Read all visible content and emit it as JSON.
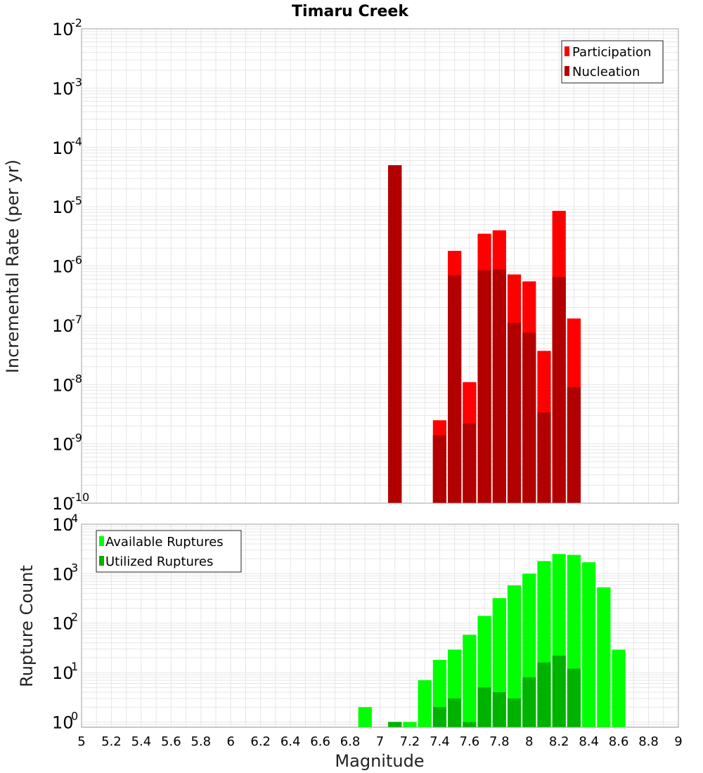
{
  "colors": {
    "participation": "#ff0000",
    "nucleation": "#b20000",
    "available": "#00ff00",
    "utilized": "#00b200",
    "grid": "#e6e6e6",
    "frame": "#a0a0a0"
  },
  "chart_data": [
    {
      "type": "bar",
      "title": "Timaru Creek",
      "xlabel": "",
      "ylabel": "Incremental Rate (per yr)",
      "yscale": "log",
      "ylim": [
        1e-10,
        0.01
      ],
      "xlim": [
        5,
        9
      ],
      "ytick_base": "10",
      "ytick_exponents": [
        "-10",
        "-9",
        "-8",
        "-7",
        "-6",
        "-5",
        "-4",
        "-3",
        "-2"
      ],
      "legend_position": "top-right",
      "grid": true,
      "series": [
        {
          "name": "Participation",
          "color_key": "participation",
          "x": [
            7.1,
            7.4,
            7.5,
            7.6,
            7.7,
            7.8,
            7.9,
            8.0,
            8.1,
            8.2,
            8.3
          ],
          "values": [
            5e-05,
            2.5e-09,
            1.8e-06,
            1.1e-08,
            3.5e-06,
            4e-06,
            7.2e-07,
            5.5e-07,
            3.7e-08,
            8.5e-06,
            1.3e-07
          ]
        },
        {
          "name": "Nucleation",
          "color_key": "nucleation",
          "x": [
            7.1,
            7.4,
            7.5,
            7.6,
            7.7,
            7.8,
            7.9,
            8.0,
            8.1,
            8.2,
            8.3
          ],
          "values": [
            5e-05,
            1.4e-09,
            7e-07,
            2.2e-09,
            8.5e-07,
            8.7e-07,
            1.1e-07,
            7.5e-08,
            3.4e-09,
            6.5e-07,
            9e-09
          ]
        }
      ]
    },
    {
      "type": "bar",
      "title": "",
      "xlabel": "Magnitude",
      "ylabel": "Rupture Count",
      "yscale": "log",
      "ylim": [
        0.78,
        10000
      ],
      "xlim": [
        5,
        9
      ],
      "ytick_base": "10",
      "ytick_exponents": [
        "0",
        "1",
        "2",
        "3",
        "4"
      ],
      "xticks": [
        "5",
        "5.2",
        "5.4",
        "5.6",
        "5.8",
        "6",
        "6.2",
        "6.4",
        "6.6",
        "6.8",
        "7",
        "7.2",
        "7.4",
        "7.6",
        "7.8",
        "8",
        "8.2",
        "8.4",
        "8.6",
        "8.8",
        "9"
      ],
      "legend_position": "top-left",
      "grid": true,
      "series": [
        {
          "name": "Available Ruptures",
          "color_key": "available",
          "x": [
            6.9,
            7.1,
            7.2,
            7.3,
            7.4,
            7.5,
            7.6,
            7.7,
            7.8,
            7.9,
            8.0,
            8.1,
            8.2,
            8.3,
            8.4,
            8.5,
            8.6
          ],
          "values": [
            2,
            1,
            1,
            7,
            18,
            29,
            58,
            140,
            320,
            580,
            1000,
            1800,
            2500,
            2400,
            1700,
            530,
            29
          ]
        },
        {
          "name": "Utilized Ruptures",
          "color_key": "utilized",
          "x": [
            7.1,
            7.4,
            7.5,
            7.6,
            7.7,
            7.8,
            7.9,
            8.0,
            8.1,
            8.2,
            8.3
          ],
          "values": [
            1,
            2,
            3,
            1,
            5,
            4,
            3,
            8,
            16,
            22,
            12
          ]
        }
      ]
    }
  ]
}
